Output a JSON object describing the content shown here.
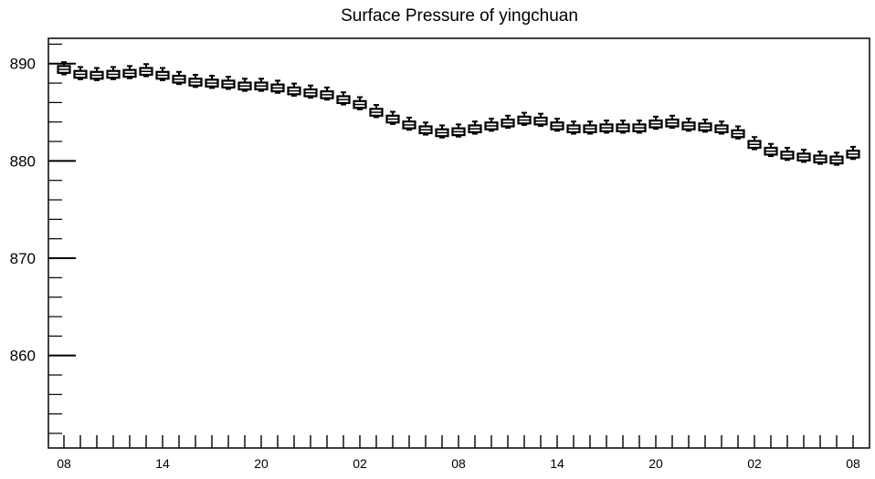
{
  "chart_data": {
    "type": "boxplot",
    "title": "Surface Pressure of yingchuan",
    "xlabel": "",
    "ylabel": "",
    "ylim": [
      850.5,
      892.6
    ],
    "yticks": [
      860,
      870,
      880,
      890
    ],
    "x_tick_labels": [
      "08",
      "14",
      "20",
      "02",
      "08",
      "14",
      "20",
      "02",
      "08"
    ],
    "grid": false,
    "legend": "none",
    "box_color": "#000000",
    "series": [
      {
        "values": [
          889.4,
          888.9,
          888.8,
          888.9,
          889.0,
          889.2,
          888.8,
          888.4,
          888.1,
          888.0,
          887.9,
          887.7,
          887.7,
          887.5,
          887.2,
          887.0,
          886.8,
          886.3,
          885.8,
          885.0,
          884.3,
          883.7,
          883.2,
          882.9,
          883.0,
          883.3,
          883.6,
          883.9,
          884.2,
          884.1,
          883.6,
          883.3,
          883.3,
          883.4,
          883.4,
          883.4,
          883.8,
          883.9,
          883.6,
          883.5,
          883.3,
          882.8,
          881.7,
          881.0,
          880.6,
          880.4,
          880.2,
          880.1,
          880.7
        ]
      }
    ]
  }
}
